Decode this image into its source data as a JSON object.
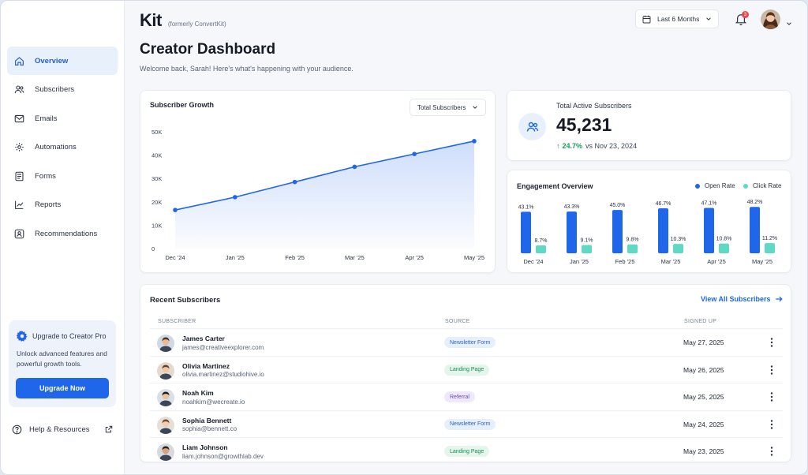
{
  "brand": {
    "logo": "Kit",
    "subtitle": "(formerly ConvertKit)"
  },
  "header": {
    "period": "Last 6 Months",
    "notifications_count": "3"
  },
  "sidebar": {
    "items": [
      {
        "label": "Overview",
        "icon": "home-icon",
        "active": true
      },
      {
        "label": "Subscribers",
        "icon": "users-icon"
      },
      {
        "label": "Emails",
        "icon": "mail-icon"
      },
      {
        "label": "Automations",
        "icon": "automation-icon"
      },
      {
        "label": "Forms",
        "icon": "form-icon"
      },
      {
        "label": "Reports",
        "icon": "chart-icon"
      },
      {
        "label": "Recommendations",
        "icon": "recommend-icon"
      }
    ],
    "upgrade": {
      "title": "Upgrade to Creator Pro",
      "description": "Unlock advanced features and powerful growth tools.",
      "button": "Upgrade Now"
    },
    "help": "Help & Resources"
  },
  "page": {
    "title": "Creator Dashboard",
    "subtitle": "Welcome back, Sarah! Here's what's happening with your audience."
  },
  "growth": {
    "title": "Subscriber Growth",
    "select": "Total Subscribers"
  },
  "active": {
    "label": "Total Active Subscribers",
    "value": "45,231",
    "change_pct": "24.7%",
    "change_text": "vs Nov 23, 2024"
  },
  "engagement": {
    "title": "Engagement Overview",
    "legend": [
      "Open Rate",
      "Click Rate"
    ]
  },
  "colors": {
    "accent": "#1f66ea",
    "open": "#1f66ea",
    "click": "#5fd8c4",
    "positive": "#1e9d5a"
  },
  "chart_data": [
    {
      "type": "area",
      "title": "Subscriber Growth",
      "categories": [
        "Dec '24",
        "Jan '25",
        "Feb '25",
        "Mar '25",
        "Apr '25",
        "May '25"
      ],
      "values": [
        16500,
        22000,
        28500,
        35000,
        40500,
        46000
      ],
      "y_ticks": [
        "0",
        "10K",
        "20K",
        "30K",
        "40K",
        "50K"
      ],
      "ylim": [
        0,
        50000
      ],
      "grid": false
    },
    {
      "type": "bar",
      "title": "Engagement Overview",
      "categories": [
        "Dec '24",
        "Jan '25",
        "Feb '25",
        "Mar '25",
        "Apr '25",
        "May '25"
      ],
      "series": [
        {
          "name": "Open Rate",
          "values": [
            43.1,
            43.3,
            45.0,
            46.7,
            47.1,
            48.2
          ],
          "labels": [
            "43.1%",
            "43.3%",
            "45.0%",
            "46.7%",
            "47.1%",
            "48.2%"
          ]
        },
        {
          "name": "Click Rate",
          "values": [
            8.7,
            9.1,
            9.8,
            10.3,
            10.8,
            11.2
          ],
          "labels": [
            "8.7%",
            "9.1%",
            "9.8%",
            "10.3%",
            "10.8%",
            "11.2%"
          ]
        }
      ],
      "legend": "top-right"
    }
  ],
  "recent": {
    "title": "Recent Subscribers",
    "view_all": "View All Subscribers",
    "columns": [
      "SUBSCRIBER",
      "SOURCE",
      "SIGNED UP"
    ],
    "rows": [
      {
        "name": "James Carter",
        "email": "james@creativeexplorer.com",
        "source": "Newsletter Form",
        "date": "May 27, 2025",
        "avatar_skin": "#e8b996",
        "avatar_hair": "#4a3222",
        "avatar_bg": "#cfd8e3",
        "source_kind": "newsletter"
      },
      {
        "name": "Olivia Martinez",
        "email": "olivia.martinez@studiohive.io",
        "source": "Landing Page",
        "date": "May 26, 2025",
        "avatar_skin": "#f0c6a6",
        "avatar_hair": "#6b3e24",
        "avatar_bg": "#e5d9cf",
        "source_kind": "landing"
      },
      {
        "name": "Noah Kim",
        "email": "noahkim@wecreate.io",
        "source": "Referral",
        "date": "May 25, 2025",
        "avatar_skin": "#e9c3a0",
        "avatar_hair": "#1f1a17",
        "avatar_bg": "#d9dfe6",
        "source_kind": "referral"
      },
      {
        "name": "Sophia Bennett",
        "email": "sophia@bennett.co",
        "source": "Newsletter Form",
        "date": "May 24, 2025",
        "avatar_skin": "#f2cdb2",
        "avatar_hair": "#7a4a2a",
        "avatar_bg": "#e6dfd8",
        "source_kind": "newsletter"
      },
      {
        "name": "Liam Johnson",
        "email": "liam.johnson@growthlab.dev",
        "source": "Landing Page",
        "date": "May 23, 2025",
        "avatar_skin": "#d9a27e",
        "avatar_hair": "#2e2019",
        "avatar_bg": "#d6d9de",
        "source_kind": "landing"
      }
    ]
  }
}
